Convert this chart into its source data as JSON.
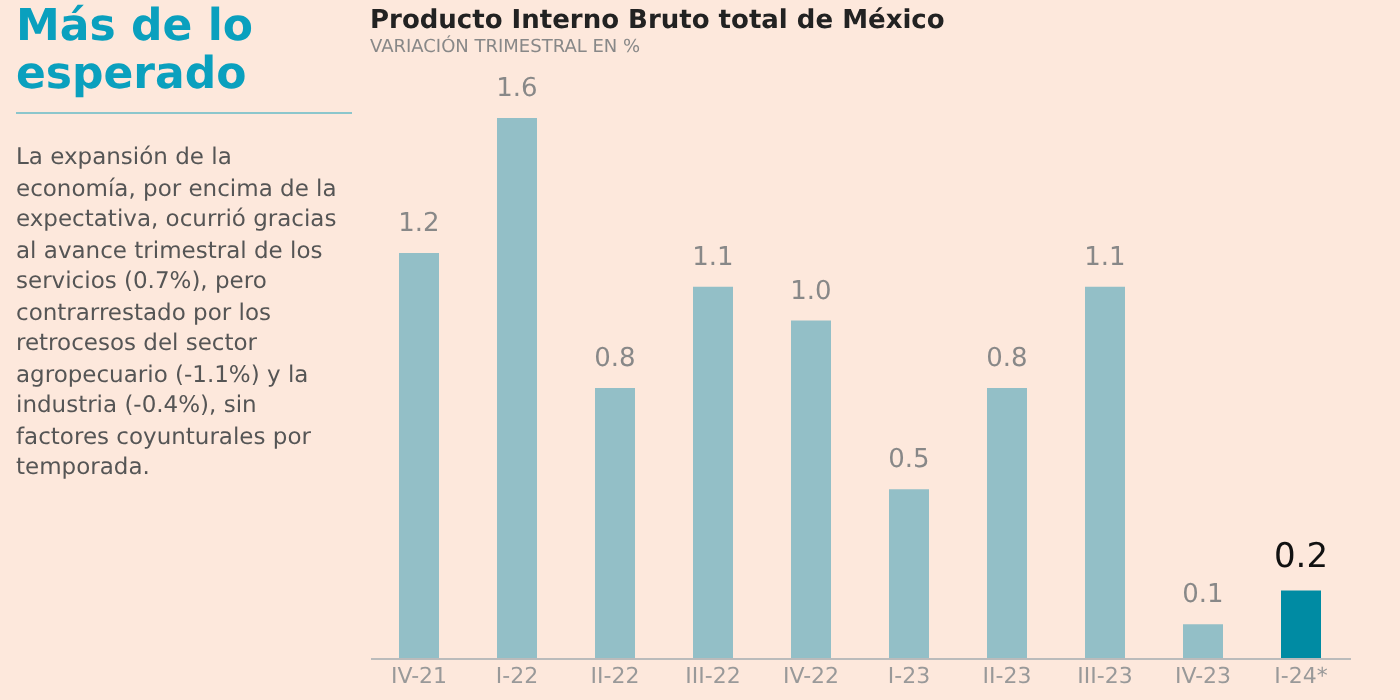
{
  "chart_data": {
    "type": "bar",
    "title": "Producto Interno Bruto total de México",
    "subtitle": "VARIACIÓN TRIMESTRAL EN %",
    "annotations": [
      "Más de lo esperado",
      "La expansión de la economía, por encima de la expectativa, ocurrió gracias al avance trimestral de los servicios (0.7%), pero contrarrestado por los retrocesos del sector agropecuario (-1.1%) y la industria (-0.4%), sin factores coyunturales por temporada."
    ],
    "categories": [
      "IV-21",
      "I-22",
      "II-22",
      "III-22",
      "IV-22",
      "I-23",
      "II-23",
      "III-23",
      "IV-23",
      "I-24*"
    ],
    "values": [
      1.2,
      1.6,
      0.8,
      1.1,
      1.0,
      0.5,
      0.8,
      1.1,
      0.1,
      0.2
    ],
    "colors": [
      "#93bfc7",
      "#93bfc7",
      "#93bfc7",
      "#93bfc7",
      "#93bfc7",
      "#93bfc7",
      "#93bfc7",
      "#93bfc7",
      "#93bfc7",
      "#008ba3"
    ],
    "value_labels": [
      "1.2",
      "1.6",
      "0.8",
      "1.1",
      "1.0",
      "0.5",
      "0.8",
      "1.1",
      "0.1",
      "0.2"
    ]
  }
}
